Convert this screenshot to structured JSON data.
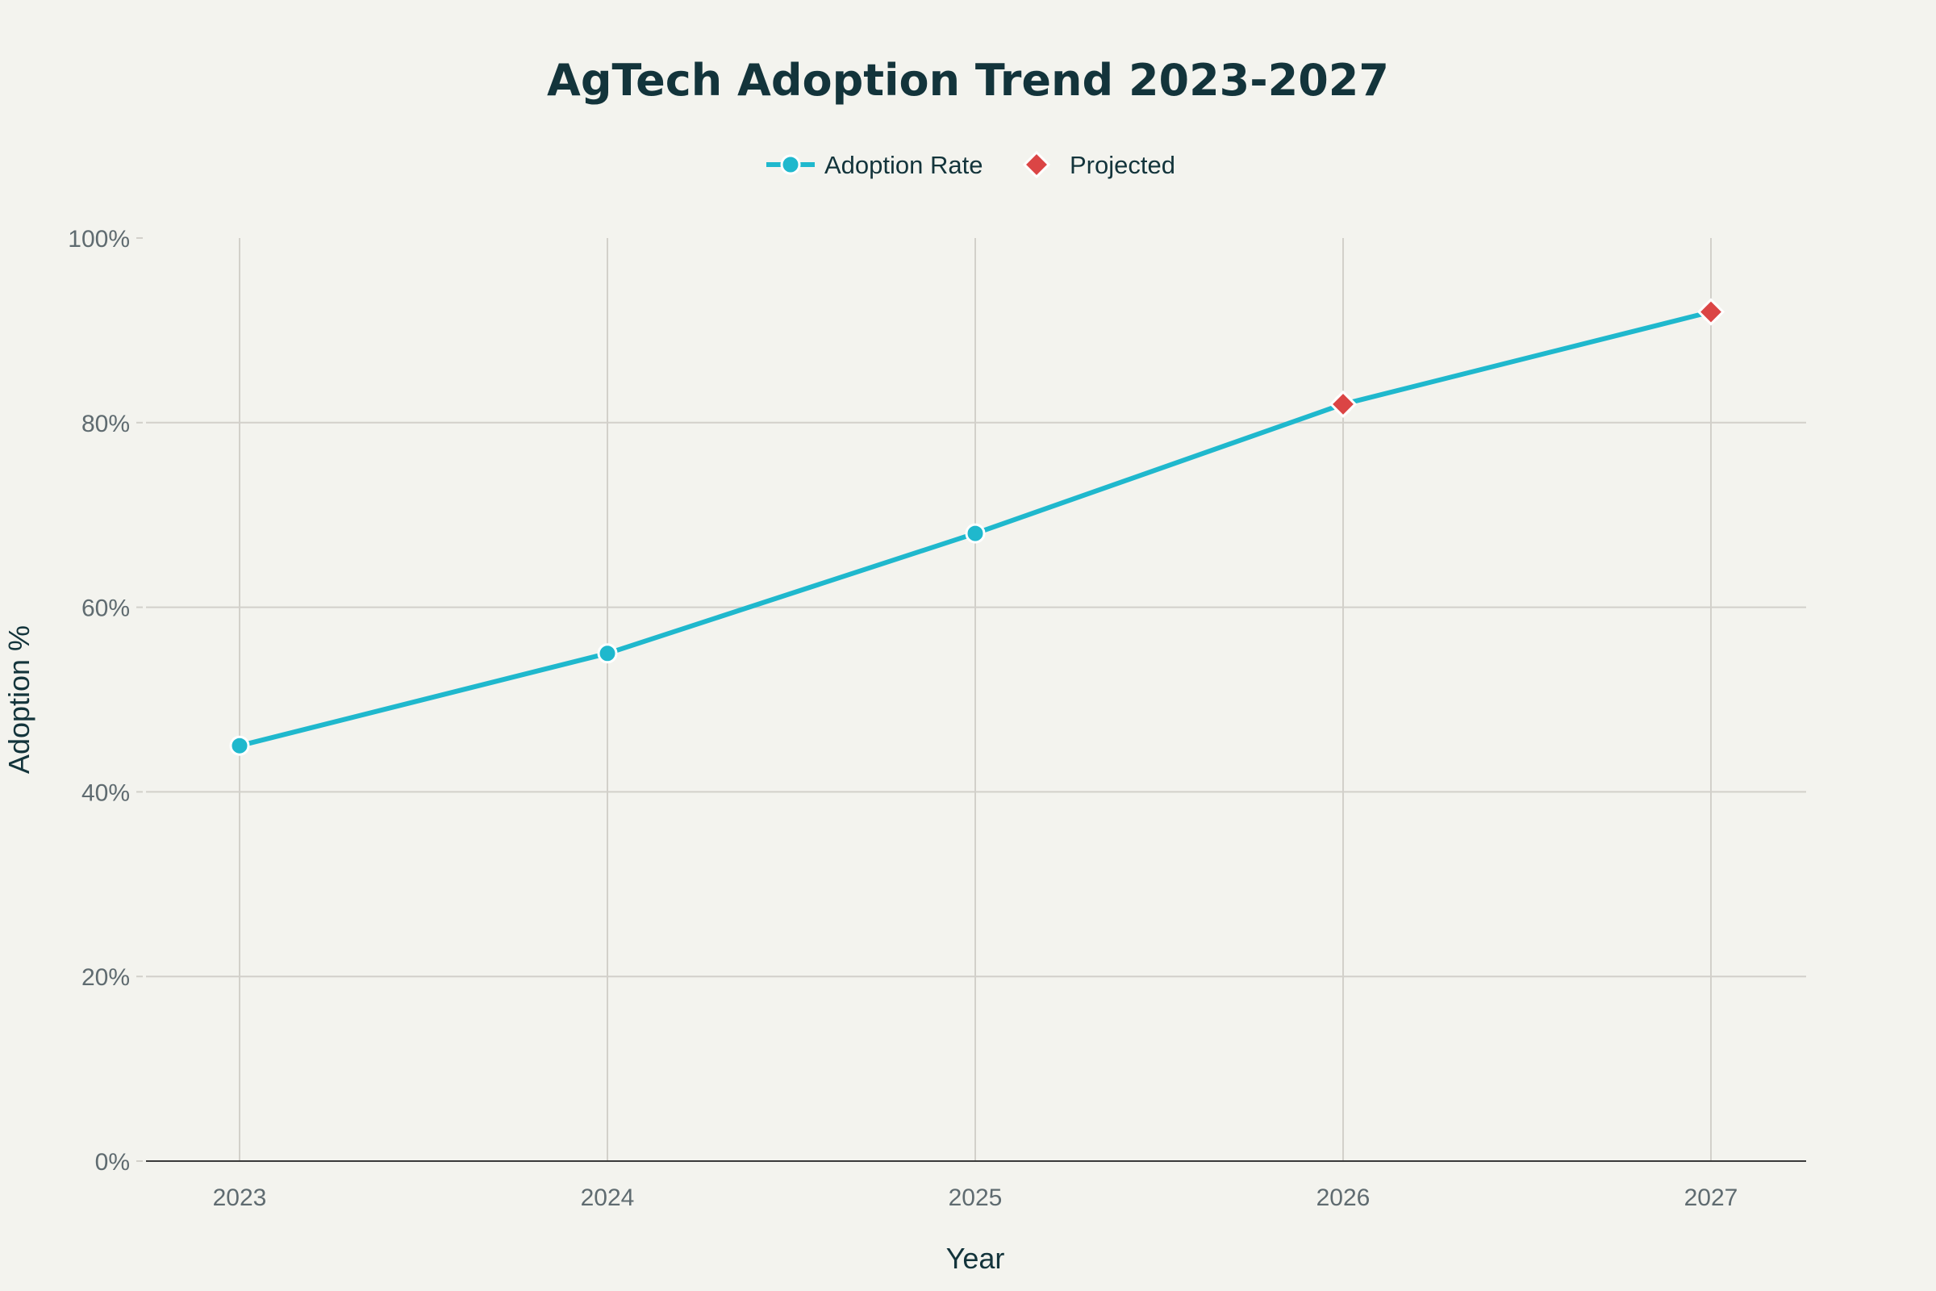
{
  "chart_data": {
    "type": "line",
    "title": "AgTech Adoption Trend 2023-2027",
    "xlabel": "Year",
    "ylabel": "Adoption %",
    "x": [
      2023,
      2024,
      2025,
      2026,
      2027
    ],
    "x_tick_labels": [
      "2023",
      "2024",
      "2025",
      "2026",
      "2027"
    ],
    "y_tick_labels": [
      "0%",
      "20%",
      "40%",
      "60%",
      "80%",
      "100%"
    ],
    "ylim": [
      0,
      100
    ],
    "grid": true,
    "legend_placement": "top-center",
    "series": [
      {
        "name": "Adoption Rate",
        "values": [
          45,
          55,
          68,
          82,
          92
        ],
        "color": "#1fb8cd",
        "marker": "circle"
      },
      {
        "name": "Projected",
        "x": [
          2026,
          2027
        ],
        "values": [
          82,
          92
        ],
        "color": "#db4545",
        "marker": "diamond"
      }
    ]
  }
}
